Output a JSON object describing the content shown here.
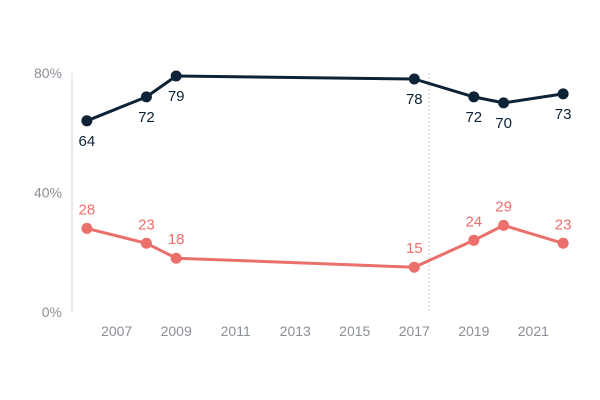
{
  "chart_data": {
    "type": "line",
    "ylim": [
      0,
      80
    ],
    "yticks": [
      {
        "value": 0,
        "label": "0%"
      },
      {
        "value": 40,
        "label": "40%"
      },
      {
        "value": 80,
        "label": "80%"
      }
    ],
    "xlim": [
      2005.5,
      2022.5
    ],
    "xticks": [
      2007,
      2009,
      2011,
      2013,
      2015,
      2017,
      2019,
      2021
    ],
    "reference_line_x": 2017.5,
    "grid": false,
    "series": [
      {
        "color": "#0c2236",
        "label_position": "below",
        "points": [
          {
            "x": 2006,
            "y": 64
          },
          {
            "x": 2008,
            "y": 72
          },
          {
            "x": 2009,
            "y": 79
          },
          {
            "x": 2017,
            "y": 78
          },
          {
            "x": 2019,
            "y": 72
          },
          {
            "x": 2020,
            "y": 70
          },
          {
            "x": 2022,
            "y": 73
          }
        ]
      },
      {
        "color": "#eb6f6b",
        "label_position": "above",
        "points": [
          {
            "x": 2006,
            "y": 28
          },
          {
            "x": 2008,
            "y": 23
          },
          {
            "x": 2009,
            "y": 18
          },
          {
            "x": 2017,
            "y": 15
          },
          {
            "x": 2019,
            "y": 24
          },
          {
            "x": 2020,
            "y": 29
          },
          {
            "x": 2022,
            "y": 23
          }
        ]
      }
    ]
  }
}
